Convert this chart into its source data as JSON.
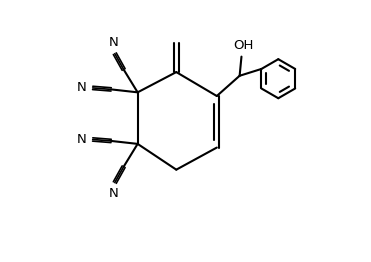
{
  "bg_color": "#ffffff",
  "line_color": "#000000",
  "line_width": 1.5,
  "font_size": 9.5,
  "xlim": [
    0,
    10
  ],
  "ylim": [
    0,
    7
  ]
}
